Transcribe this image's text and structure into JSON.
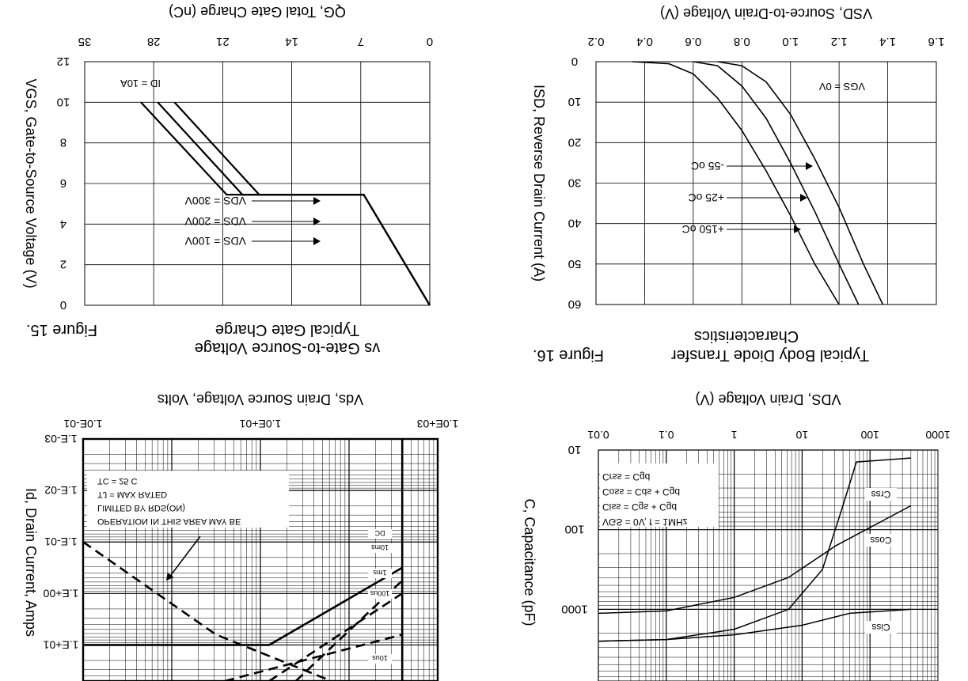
{
  "chart_data": [
    {
      "id": "fig15",
      "type": "line",
      "figure_label": "Figure 15.",
      "title_line1": "Typical Gate Charge",
      "title_line2": "vs Gate-to-Source Voltage",
      "xlabel": "QG, Total Gate Charge (nC)",
      "ylabel": "VGS, Gate-to-Source Voltage (V)",
      "xlim": [
        0,
        35
      ],
      "ylim": [
        0,
        12
      ],
      "xticks": [
        "0",
        "7",
        "14",
        "21",
        "28",
        "35"
      ],
      "yticks": [
        "0",
        "2",
        "4",
        "6",
        "8",
        "10",
        "12"
      ],
      "annotation": "ID = 10A",
      "series": [
        {
          "name": "VDS = 100V",
          "x": [
            0,
            6.7,
            17.3,
            25.9
          ],
          "y": [
            0,
            5.45,
            5.45,
            10
          ]
        },
        {
          "name": "VDS = 200V",
          "x": [
            0,
            6.7,
            19.0,
            27.6
          ],
          "y": [
            0,
            5.45,
            5.45,
            10
          ]
        },
        {
          "name": "VDS = 300V",
          "x": [
            0,
            6.7,
            20.6,
            29.3
          ],
          "y": [
            0,
            5.45,
            5.45,
            10
          ]
        }
      ]
    },
    {
      "id": "fig16",
      "type": "line",
      "figure_label": "Figure 16.",
      "title_line1": "Typical Body Diode Transfer",
      "title_line2": "Characteristics",
      "xlabel": "VSD, Source-to-Drain Voltage (V)",
      "ylabel": "ISD, Reverse Drain Current (A)",
      "xlim": [
        0.2,
        1.6
      ],
      "ylim": [
        0,
        60
      ],
      "xticks": [
        "0.2",
        "0.4",
        "0.6",
        "0.8",
        "1.0",
        "1.2",
        "1.4",
        "1.6"
      ],
      "yticks": [
        "0",
        "10",
        "20",
        "30",
        "40",
        "50",
        "60"
      ],
      "annotation": "VGS = 0V",
      "series": [
        {
          "name": "+150 oC",
          "x": [
            0.35,
            0.5,
            0.6,
            0.7,
            0.8,
            0.9,
            1.0,
            1.1,
            1.2
          ],
          "y": [
            0,
            0.5,
            3,
            9,
            17,
            27,
            38,
            50,
            60
          ]
        },
        {
          "name": "+25 oC",
          "x": [
            0.6,
            0.7,
            0.8,
            0.9,
            1.0,
            1.1,
            1.2,
            1.28
          ],
          "y": [
            0,
            1,
            6,
            14,
            25,
            37,
            50,
            60
          ]
        },
        {
          "name": "-55 oC",
          "x": [
            0.7,
            0.8,
            0.9,
            1.0,
            1.1,
            1.2,
            1.3,
            1.38
          ],
          "y": [
            0,
            1,
            5,
            13,
            24,
            36,
            50,
            60
          ]
        }
      ]
    },
    {
      "id": "fig17",
      "type": "line",
      "xlabel": "Vds, Drain Source Voltage, Volts",
      "ylabel": "Id, Drain Current, Amps",
      "xticks": [
        "1.0E-01",
        "1.0E+01",
        "1.0E+03"
      ],
      "yticks": [
        "1.E-03",
        "1.E-02",
        "1.E-01",
        "1.E+00",
        "1.E+01"
      ],
      "notes": [
        "OPERATION IN THIS AREA MAY BE",
        "LIMITED BY RDS(ON)",
        "TJ = MAX RATED",
        "TC = 25 C"
      ],
      "curve_labels": [
        "DC",
        "10ms",
        "1ms",
        "100us",
        "10us"
      ],
      "log_x": [
        -1,
        3
      ],
      "log_y": [
        -3,
        1.7
      ],
      "series": [
        {
          "name": "rds_limit",
          "style": "dashed",
          "logx": [
            -1,
            0.5,
            1.8
          ],
          "logy": [
            -1,
            0.8,
            1.7
          ]
        },
        {
          "name": "10us",
          "style": "dashed",
          "logx": [
            0.6,
            2.6
          ],
          "logy": [
            1.7,
            0.8
          ]
        },
        {
          "name": "100us",
          "style": "dashed",
          "logx": [
            1.1,
            2.6
          ],
          "logy": [
            1.7,
            0.0
          ]
        },
        {
          "name": "1ms",
          "style": "dashed",
          "logx": [
            1.4,
            2.6
          ],
          "logy": [
            1.7,
            -0.25
          ]
        },
        {
          "name": "DC",
          "style": "solid",
          "logx": [
            -1,
            1.1,
            2.6
          ],
          "logy": [
            1.0,
            1.0,
            -0.5
          ]
        }
      ]
    },
    {
      "id": "fig18",
      "type": "line",
      "xlabel": "VDS, Drain Voltage (V)",
      "ylabel": "C, Capacitance (pF)",
      "xticks": [
        "0.01",
        "0.1",
        "1",
        "10",
        "100",
        "1000"
      ],
      "yticks": [
        "10",
        "100",
        "1000"
      ],
      "legend": [
        "VGS = 0V, f = 1MHz",
        "Ciss = Cgs + Cgd",
        "Coss = Cds + Cgd",
        "Crss = Cgd"
      ],
      "curve_labels": [
        "Ciss",
        "Coss",
        "Crss"
      ],
      "series": [
        {
          "name": "Ciss",
          "logx": [
            -2,
            -1,
            0,
            1,
            1.7,
            2.6
          ],
          "logy": [
            3.4,
            3.38,
            3.32,
            3.2,
            3.05,
            3.0
          ]
        },
        {
          "name": "Coss",
          "logx": [
            -2,
            -1,
            0,
            0.8,
            1.5,
            2.6
          ],
          "logy": [
            3.05,
            3.02,
            2.85,
            2.6,
            2.2,
            1.7
          ]
        },
        {
          "name": "Crss",
          "logx": [
            -2,
            -1,
            0,
            0.8,
            1.3,
            1.6,
            1.8,
            2.6
          ],
          "logy": [
            3.4,
            3.38,
            3.25,
            3.0,
            2.5,
            1.7,
            1.15,
            1.1
          ]
        }
      ]
    }
  ]
}
